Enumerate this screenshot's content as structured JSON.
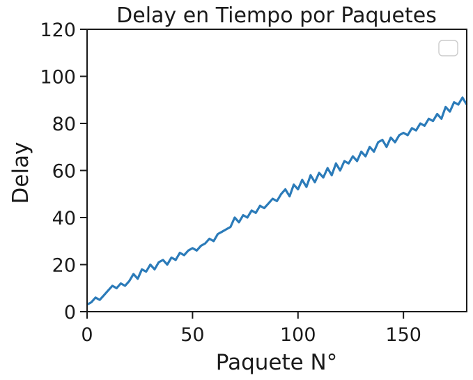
{
  "chart_data": {
    "type": "line",
    "title": "Delay en Tiempo por Paquetes",
    "xlabel": "Paquete N°",
    "ylabel": "Delay",
    "xlim": [
      0,
      180
    ],
    "ylim": [
      0,
      120
    ],
    "xticks": [
      0,
      50,
      100,
      150
    ],
    "yticks": [
      0,
      20,
      40,
      60,
      80,
      100,
      120
    ],
    "grid": false,
    "legend": {
      "placement": "top-right",
      "entries": []
    },
    "series": [
      {
        "color": "#2b7bb9",
        "x": [
          0,
          2,
          4,
          6,
          8,
          10,
          12,
          14,
          16,
          18,
          20,
          22,
          24,
          26,
          28,
          30,
          32,
          34,
          36,
          38,
          40,
          42,
          44,
          46,
          48,
          50,
          52,
          54,
          56,
          58,
          60,
          62,
          64,
          66,
          68,
          70,
          72,
          74,
          76,
          78,
          80,
          82,
          84,
          86,
          88,
          90,
          92,
          94,
          96,
          98,
          100,
          102,
          104,
          106,
          108,
          110,
          112,
          114,
          116,
          118,
          120,
          122,
          124,
          126,
          128,
          130,
          132,
          134,
          136,
          138,
          140,
          142,
          144,
          146,
          148,
          150,
          152,
          154,
          156,
          158,
          160,
          162,
          164,
          166,
          168,
          170,
          172,
          174,
          176,
          178,
          180
        ],
        "y": [
          3,
          4,
          6,
          5,
          7,
          9,
          11,
          10,
          12,
          11,
          13,
          16,
          14,
          18,
          17,
          20,
          18,
          21,
          22,
          20,
          23,
          22,
          25,
          24,
          26,
          27,
          26,
          28,
          29,
          31,
          30,
          33,
          34,
          35,
          36,
          40,
          38,
          41,
          40,
          43,
          42,
          45,
          44,
          46,
          48,
          47,
          50,
          52,
          49,
          54,
          52,
          56,
          53,
          58,
          55,
          59,
          57,
          61,
          58,
          63,
          60,
          64,
          63,
          66,
          64,
          68,
          66,
          70,
          68,
          72,
          73,
          70,
          74,
          72,
          75,
          76,
          75,
          78,
          77,
          80,
          79,
          82,
          81,
          84,
          82,
          87,
          85,
          89,
          88,
          91,
          88
        ]
      }
    ]
  }
}
